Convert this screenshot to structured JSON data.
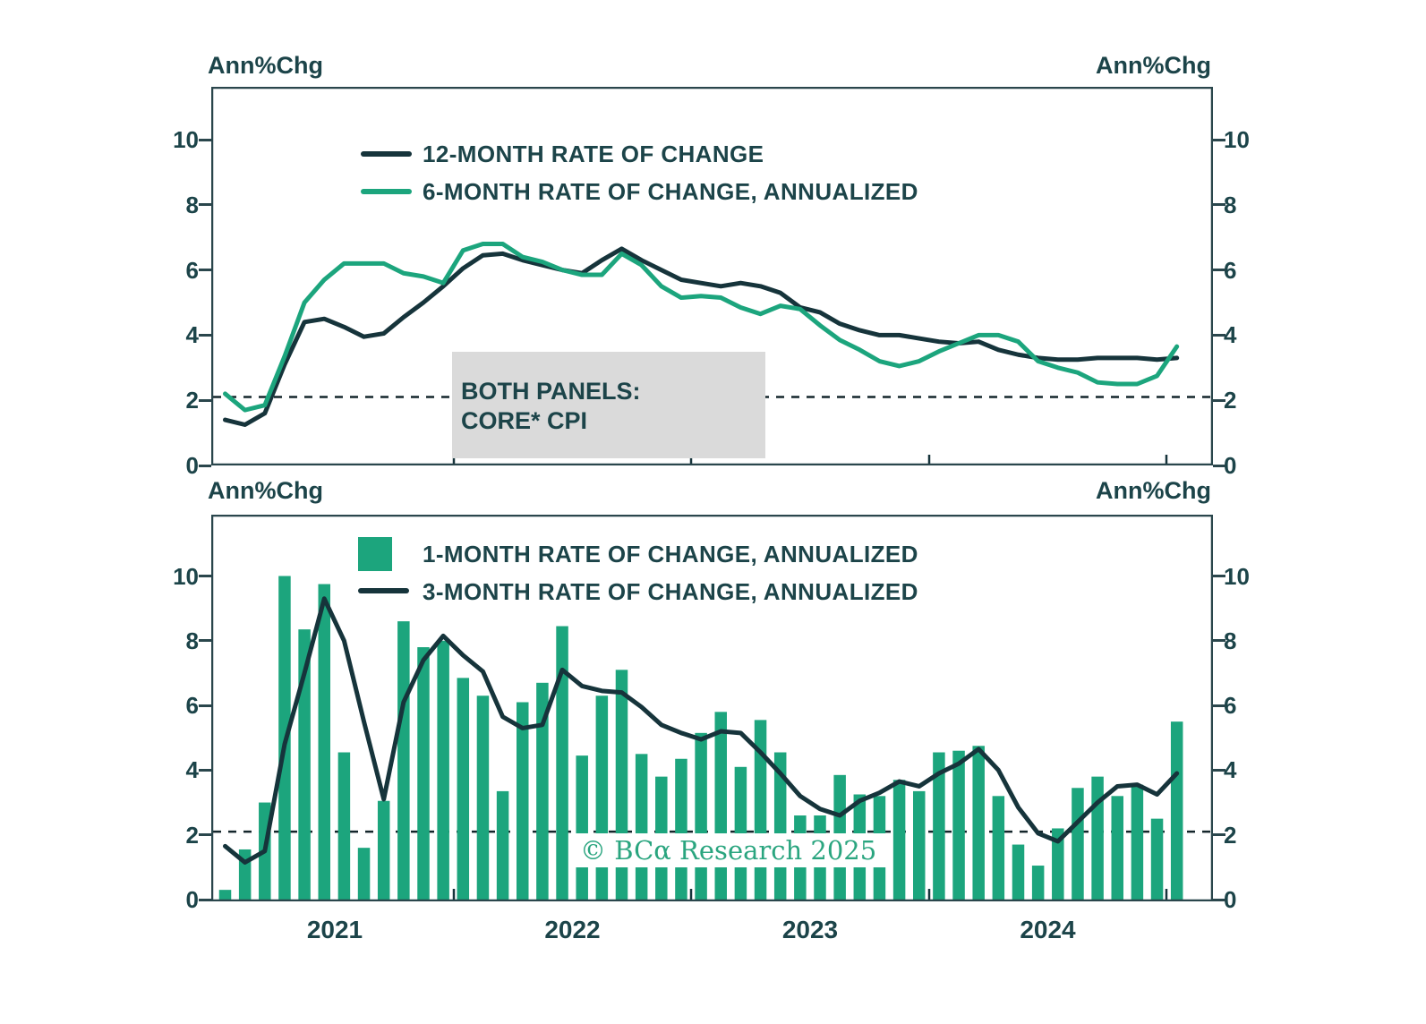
{
  "axis_label": "Ann%Chg",
  "watermark": "© BCα Research 2025",
  "annotation": {
    "line1": "BOTH PANELS:",
    "line2": "CORE* CPI"
  },
  "colors": {
    "line_dark": "#16343b",
    "green": "#1ca57d",
    "text": "#1c4449",
    "axis_border": "#2a464c",
    "gray_box": "#dadada",
    "dashed": "#14262b",
    "watermark_green": "#2aa57f"
  },
  "y_ticks": [
    0,
    2,
    4,
    6,
    8,
    10
  ],
  "chart_data": [
    {
      "panel": "top",
      "type": "line",
      "ylabel": "Ann%Chg",
      "ylim": [
        0,
        11.6
      ],
      "y_ticks": [
        0,
        2,
        4,
        6,
        8,
        10
      ],
      "reference_line": 2.1,
      "grid": "off",
      "legend_position": "top-left-inside",
      "x_months": [
        "2021-01",
        "2021-02",
        "2021-03",
        "2021-04",
        "2021-05",
        "2021-06",
        "2021-07",
        "2021-08",
        "2021-09",
        "2021-10",
        "2021-11",
        "2021-12",
        "2022-01",
        "2022-02",
        "2022-03",
        "2022-04",
        "2022-05",
        "2022-06",
        "2022-07",
        "2022-08",
        "2022-09",
        "2022-10",
        "2022-11",
        "2022-12",
        "2023-01",
        "2023-02",
        "2023-03",
        "2023-04",
        "2023-05",
        "2023-06",
        "2023-07",
        "2023-08",
        "2023-09",
        "2023-10",
        "2023-11",
        "2023-12",
        "2024-01",
        "2024-02",
        "2024-03",
        "2024-04",
        "2024-05",
        "2024-06",
        "2024-07",
        "2024-08",
        "2024-09",
        "2024-10",
        "2024-11",
        "2024-12",
        "2025-01"
      ],
      "series": [
        {
          "name": "12-MONTH RATE OF CHANGE",
          "color": "#16343b",
          "values": [
            1.4,
            1.25,
            1.6,
            3.1,
            4.4,
            4.5,
            4.25,
            3.95,
            4.05,
            4.55,
            5.0,
            5.5,
            6.05,
            6.45,
            6.5,
            6.3,
            6.15,
            6.0,
            5.9,
            6.3,
            6.65,
            6.3,
            6.0,
            5.7,
            5.6,
            5.5,
            5.6,
            5.5,
            5.3,
            4.85,
            4.7,
            4.35,
            4.15,
            4.0,
            4.0,
            3.9,
            3.8,
            3.75,
            3.8,
            3.55,
            3.4,
            3.3,
            3.25,
            3.25,
            3.3,
            3.3,
            3.3,
            3.25,
            3.3
          ]
        },
        {
          "name": "6-MONTH RATE OF CHANGE, ANNUALIZED",
          "color": "#1ca57d",
          "values": [
            2.2,
            1.7,
            1.85,
            3.35,
            5.0,
            5.7,
            6.2,
            6.2,
            6.2,
            5.9,
            5.8,
            5.6,
            6.6,
            6.8,
            6.8,
            6.4,
            6.25,
            6.0,
            5.85,
            5.85,
            6.5,
            6.15,
            5.5,
            5.15,
            5.2,
            5.15,
            4.85,
            4.65,
            4.9,
            4.8,
            4.3,
            3.85,
            3.55,
            3.2,
            3.05,
            3.2,
            3.5,
            3.75,
            4.0,
            4.0,
            3.8,
            3.2,
            3.0,
            2.85,
            2.55,
            2.5,
            2.5,
            2.75,
            3.65
          ]
        }
      ]
    },
    {
      "panel": "bottom",
      "type": "bar+line",
      "ylabel": "Ann%Chg",
      "ylim": [
        0,
        11.9
      ],
      "y_ticks": [
        0,
        2,
        4,
        6,
        8,
        10
      ],
      "reference_line": 2.1,
      "grid": "off",
      "legend_position": "top-left-inside",
      "x_tick_labels": [
        "2021",
        "2022",
        "2023",
        "2024"
      ],
      "x_months": [
        "2021-01",
        "2021-02",
        "2021-03",
        "2021-04",
        "2021-05",
        "2021-06",
        "2021-07",
        "2021-08",
        "2021-09",
        "2021-10",
        "2021-11",
        "2021-12",
        "2022-01",
        "2022-02",
        "2022-03",
        "2022-04",
        "2022-05",
        "2022-06",
        "2022-07",
        "2022-08",
        "2022-09",
        "2022-10",
        "2022-11",
        "2022-12",
        "2023-01",
        "2023-02",
        "2023-03",
        "2023-04",
        "2023-05",
        "2023-06",
        "2023-07",
        "2023-08",
        "2023-09",
        "2023-10",
        "2023-11",
        "2023-12",
        "2024-01",
        "2024-02",
        "2024-03",
        "2024-04",
        "2024-05",
        "2024-06",
        "2024-07",
        "2024-08",
        "2024-09",
        "2024-10",
        "2024-11",
        "2024-12",
        "2025-01"
      ],
      "series": [
        {
          "name": "1-MONTH RATE OF CHANGE, ANNUALIZED",
          "type": "bar",
          "color": "#1ca57d",
          "values": [
            0.3,
            1.55,
            3.0,
            10.0,
            8.35,
            9.75,
            4.55,
            1.6,
            3.05,
            8.6,
            7.8,
            8.0,
            6.85,
            6.3,
            3.35,
            6.1,
            6.7,
            8.45,
            4.45,
            6.3,
            7.1,
            4.5,
            3.8,
            4.35,
            5.15,
            5.8,
            4.1,
            5.55,
            4.55,
            2.6,
            2.6,
            3.85,
            3.25,
            3.2,
            3.7,
            3.35,
            4.55,
            4.6,
            4.75,
            3.2,
            1.7,
            1.05,
            2.2,
            3.45,
            3.8,
            3.2,
            3.55,
            2.5,
            5.5
          ]
        },
        {
          "name": "3-MONTH RATE OF CHANGE, ANNUALIZED",
          "type": "line",
          "color": "#16343b",
          "values": [
            1.65,
            1.15,
            1.5,
            4.8,
            7.0,
            9.3,
            8.0,
            5.5,
            3.1,
            6.1,
            7.4,
            8.15,
            7.55,
            7.05,
            5.65,
            5.3,
            5.4,
            7.1,
            6.6,
            6.45,
            6.4,
            5.95,
            5.4,
            5.15,
            4.95,
            5.2,
            5.15,
            4.55,
            3.9,
            3.2,
            2.8,
            2.6,
            3.05,
            3.3,
            3.65,
            3.5,
            3.9,
            4.2,
            4.65,
            4.0,
            2.85,
            2.05,
            1.8,
            2.4,
            3.0,
            3.5,
            3.55,
            3.25,
            3.9
          ]
        }
      ]
    }
  ]
}
